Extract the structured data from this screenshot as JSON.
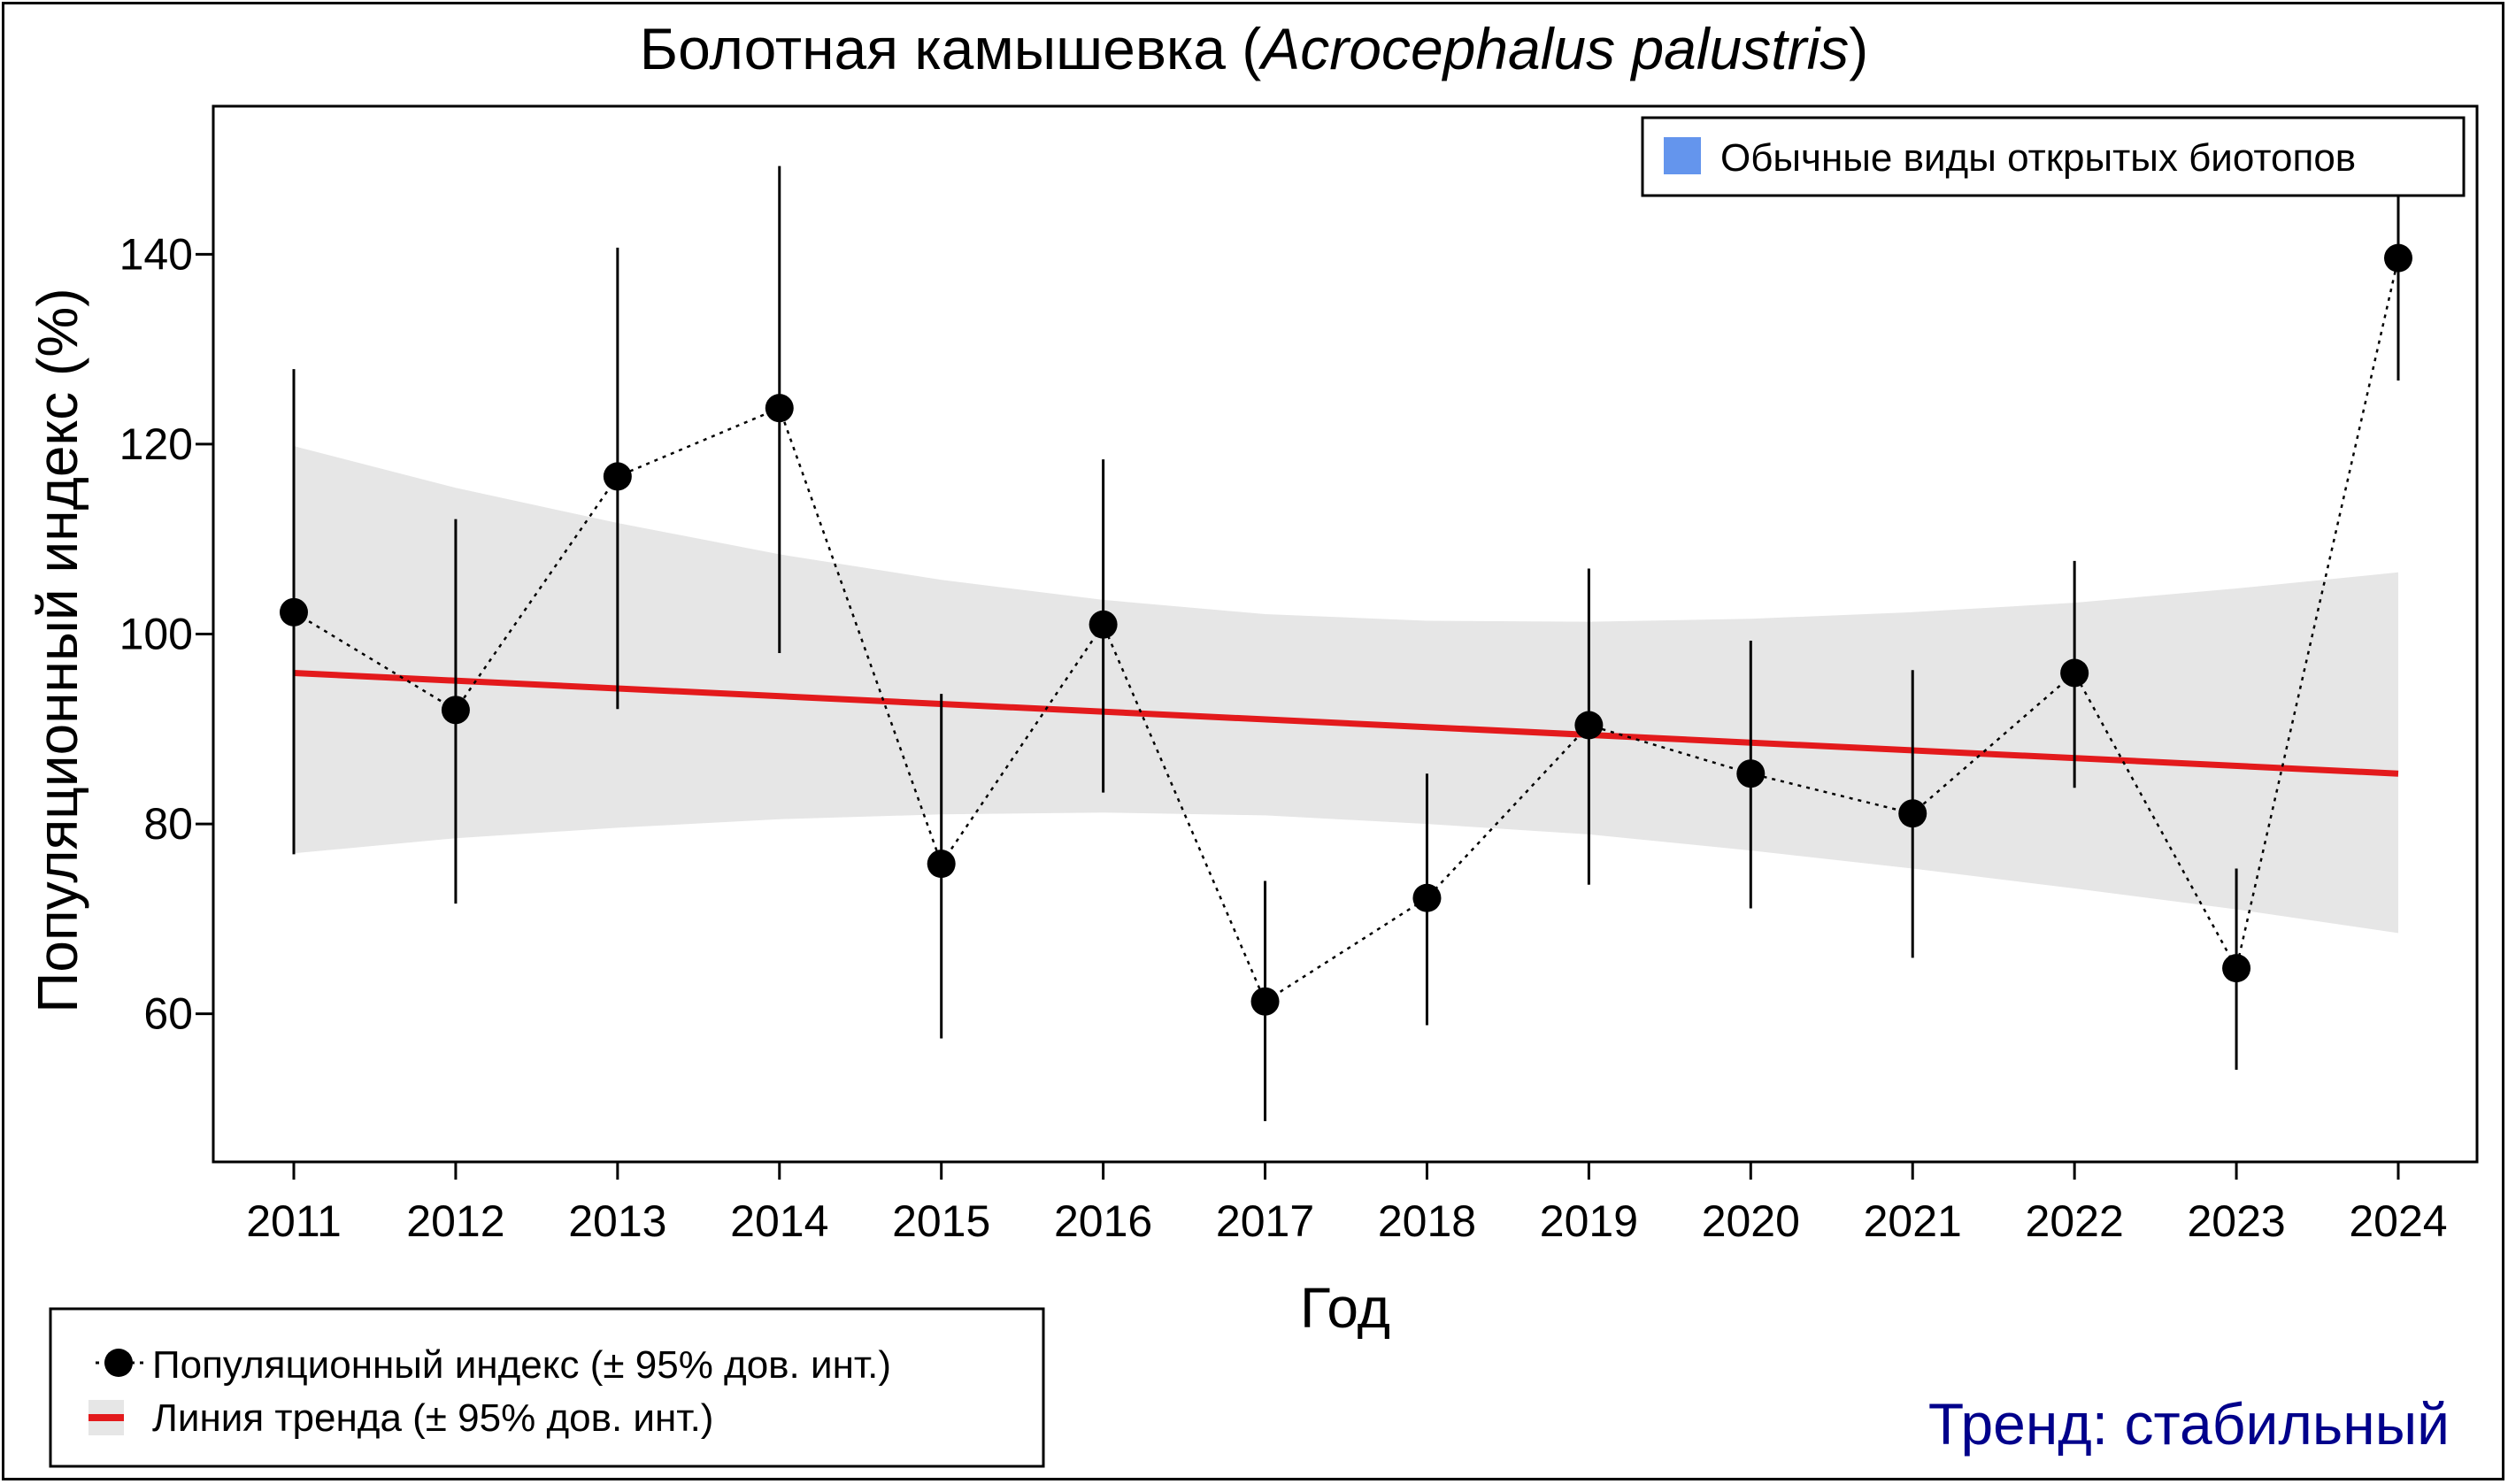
{
  "chart_data": {
    "type": "line",
    "title_prefix": "Болотная камышевка (",
    "title_species": "Acrocephalus palustris",
    "title_suffix": ")",
    "xlabel": "Год",
    "ylabel": "Популяционный индекс (%)",
    "categories": [
      "2011",
      "2012",
      "2013",
      "2014",
      "2015",
      "2016",
      "2017",
      "2018",
      "2019",
      "2020",
      "2021",
      "2022",
      "2023",
      "2024"
    ],
    "series": [
      {
        "name": "Популяционный индекс (± 95% дов. инт.)",
        "values": [
          102.3,
          92.0,
          116.6,
          123.8,
          75.8,
          101.0,
          61.3,
          72.2,
          90.4,
          85.3,
          81.1,
          95.9,
          64.8,
          139.6
        ],
        "ci_low": [
          76.8,
          71.6,
          92.1,
          98.0,
          57.4,
          83.3,
          48.7,
          58.8,
          73.6,
          71.1,
          65.9,
          83.8,
          54.1,
          126.7
        ],
        "ci_high": [
          127.9,
          112.1,
          140.7,
          149.3,
          93.7,
          118.4,
          74.0,
          85.3,
          106.9,
          99.3,
          96.2,
          107.7,
          75.3,
          146.5
        ]
      }
    ],
    "trend": {
      "name": "Линия тренда (± 95% дов. инт.)",
      "start": 95.9,
      "end": 85.3,
      "band_low": [
        76.9,
        78.5,
        79.6,
        80.5,
        81.0,
        81.2,
        80.9,
        80.0,
        78.9,
        77.2,
        75.3,
        73.2,
        71.0,
        68.5
      ],
      "band_high": [
        119.8,
        115.4,
        111.7,
        108.4,
        105.7,
        103.6,
        102.1,
        101.4,
        101.3,
        101.6,
        102.3,
        103.3,
        104.8,
        106.5
      ]
    },
    "yticks": [
      60,
      80,
      100,
      120,
      140
    ],
    "ylim": [
      44.4,
      155.6
    ],
    "colors": {
      "points": "#000000",
      "trend_line": "#e31a1c",
      "trend_band": "#e6e6e6",
      "habitat_swatch": "#6495ed",
      "trend_status": "#00008b"
    }
  },
  "legends": {
    "habitat": "Обычные виды открытых биотопов",
    "index": "Популяционный индекс (± 95% дов. инт.)",
    "trend": "Линия тренда (± 95% дов. инт.)"
  },
  "trend_status": "Тренд: стабильный"
}
